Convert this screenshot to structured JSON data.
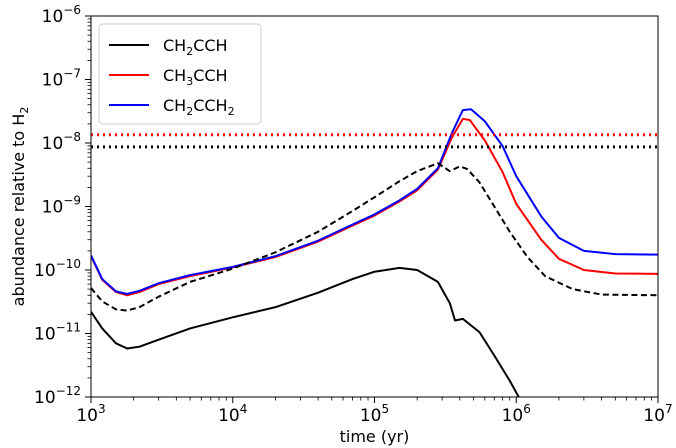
{
  "chart_data": {
    "type": "line",
    "xlabel": "time (yr)",
    "ylabel_main": "abundance relative to H",
    "ylabel_sub": "2",
    "xscale": "log",
    "yscale": "log",
    "xlim": [
      1000,
      10000000
    ],
    "ylim": [
      1e-12,
      1e-06
    ],
    "grid": false,
    "legend_position": "top-left",
    "x_ticks": [
      {
        "value": 1000,
        "base": "10",
        "exp": "3"
      },
      {
        "value": 10000,
        "base": "10",
        "exp": "4"
      },
      {
        "value": 100000,
        "base": "10",
        "exp": "5"
      },
      {
        "value": 1000000,
        "base": "10",
        "exp": "6"
      },
      {
        "value": 10000000,
        "base": "10",
        "exp": "7"
      }
    ],
    "y_ticks": [
      {
        "value": 1e-12,
        "base": "10",
        "exp": "−12"
      },
      {
        "value": 1e-11,
        "base": "10",
        "exp": "−11"
      },
      {
        "value": 1e-10,
        "base": "10",
        "exp": "−10"
      },
      {
        "value": 1e-09,
        "base": "10",
        "exp": "−9"
      },
      {
        "value": 1e-08,
        "base": "10",
        "exp": "−8"
      },
      {
        "value": 1e-07,
        "base": "10",
        "exp": "−7"
      },
      {
        "value": 1e-06,
        "base": "10",
        "exp": "−6"
      }
    ],
    "series": [
      {
        "name": "CH2CCH",
        "legend_parts": [
          "CH",
          "2",
          "CCH"
        ],
        "color": "#000000",
        "style": "solid",
        "points": [
          [
            1000,
            2.2e-11
          ],
          [
            1200,
            1.2e-11
          ],
          [
            1500,
            7e-12
          ],
          [
            1800,
            5.8e-12
          ],
          [
            2200,
            6.2e-12
          ],
          [
            3000,
            8e-12
          ],
          [
            5000,
            1.2e-11
          ],
          [
            10000,
            1.8e-11
          ],
          [
            20000,
            2.6e-11
          ],
          [
            40000,
            4.4e-11
          ],
          [
            70000,
            7.2e-11
          ],
          [
            100000,
            9.4e-11
          ],
          [
            150000,
            1.08e-10
          ],
          [
            200000,
            1e-10
          ],
          [
            280000,
            6.5e-11
          ],
          [
            340000,
            3e-11
          ],
          [
            370000,
            1.6e-11
          ],
          [
            420000,
            1.7e-11
          ],
          [
            550000,
            1.05e-11
          ],
          [
            700000,
            4.5e-12
          ],
          [
            900000,
            1.8e-12
          ],
          [
            1100000,
            8e-13
          ]
        ]
      },
      {
        "name": "CH3CCH",
        "legend_parts": [
          "CH",
          "3",
          "CCH"
        ],
        "color": "#ff0000",
        "style": "solid",
        "points": [
          [
            1000,
            1.65e-10
          ],
          [
            1200,
            7e-11
          ],
          [
            1500,
            4.5e-11
          ],
          [
            1800,
            4e-11
          ],
          [
            2200,
            4.5e-11
          ],
          [
            3000,
            6e-11
          ],
          [
            5000,
            8e-11
          ],
          [
            10000,
            1.1e-10
          ],
          [
            20000,
            1.6e-10
          ],
          [
            40000,
            2.8e-10
          ],
          [
            70000,
            5e-10
          ],
          [
            100000,
            7.2e-10
          ],
          [
            150000,
            1.2e-09
          ],
          [
            200000,
            1.8e-09
          ],
          [
            280000,
            3.8e-09
          ],
          [
            350000,
            1.2e-08
          ],
          [
            420000,
            2.4e-08
          ],
          [
            470000,
            2.3e-08
          ],
          [
            600000,
            1.1e-08
          ],
          [
            800000,
            3.5e-09
          ],
          [
            1000000,
            1.1e-09
          ],
          [
            1500000,
            3e-10
          ],
          [
            2000000,
            1.5e-10
          ],
          [
            3000000,
            1e-10
          ],
          [
            5000000,
            8.8e-11
          ],
          [
            10000000,
            8.7e-11
          ]
        ]
      },
      {
        "name": "CH2CCH2",
        "legend_parts": [
          "CH",
          "2",
          "CCH",
          "2"
        ],
        "color": "#0000ff",
        "style": "solid",
        "points": [
          [
            1000,
            1.7e-10
          ],
          [
            1200,
            7.2e-11
          ],
          [
            1500,
            4.6e-11
          ],
          [
            1800,
            4.2e-11
          ],
          [
            2200,
            4.7e-11
          ],
          [
            3000,
            6.2e-11
          ],
          [
            5000,
            8.3e-11
          ],
          [
            10000,
            1.12e-10
          ],
          [
            20000,
            1.65e-10
          ],
          [
            40000,
            2.9e-10
          ],
          [
            70000,
            5.2e-10
          ],
          [
            100000,
            7.5e-10
          ],
          [
            150000,
            1.25e-09
          ],
          [
            200000,
            1.9e-09
          ],
          [
            280000,
            4e-09
          ],
          [
            350000,
            1.4e-08
          ],
          [
            420000,
            3.3e-08
          ],
          [
            480000,
            3.4e-08
          ],
          [
            600000,
            2.2e-08
          ],
          [
            800000,
            9e-09
          ],
          [
            1000000,
            3e-09
          ],
          [
            1500000,
            7e-10
          ],
          [
            2000000,
            3.2e-10
          ],
          [
            3000000,
            2e-10
          ],
          [
            5000000,
            1.78e-10
          ],
          [
            10000000,
            1.75e-10
          ]
        ]
      },
      {
        "name": "",
        "color": "#000000",
        "style": "dashed",
        "points": [
          [
            1000,
            5.2e-11
          ],
          [
            1200,
            3.2e-11
          ],
          [
            1500,
            2.4e-11
          ],
          [
            1800,
            2.3e-11
          ],
          [
            2200,
            2.6e-11
          ],
          [
            3000,
            3.8e-11
          ],
          [
            5000,
            6.5e-11
          ],
          [
            10000,
            1.05e-10
          ],
          [
            20000,
            1.9e-10
          ],
          [
            40000,
            4e-10
          ],
          [
            70000,
            8.5e-10
          ],
          [
            100000,
            1.4e-09
          ],
          [
            150000,
            2.5e-09
          ],
          [
            200000,
            3.6e-09
          ],
          [
            280000,
            4.8e-09
          ],
          [
            340000,
            3.6e-09
          ],
          [
            400000,
            4.3e-09
          ],
          [
            450000,
            3.9e-09
          ],
          [
            550000,
            2.4e-09
          ],
          [
            700000,
            1e-09
          ],
          [
            900000,
            4e-10
          ],
          [
            1200000,
            1.6e-10
          ],
          [
            1600000,
            8e-11
          ],
          [
            2500000,
            5e-11
          ],
          [
            4000000,
            4.1e-11
          ],
          [
            10000000,
            4e-11
          ]
        ]
      },
      {
        "name": "",
        "color": "#ff0000",
        "style": "dotted",
        "points": [
          [
            1000,
            1.35e-08
          ],
          [
            10000000,
            1.35e-08
          ]
        ]
      },
      {
        "name": "",
        "color": "#000000",
        "style": "dotted",
        "points": [
          [
            1000,
            8.7e-09
          ],
          [
            10000000,
            8.7e-09
          ]
        ]
      }
    ]
  }
}
